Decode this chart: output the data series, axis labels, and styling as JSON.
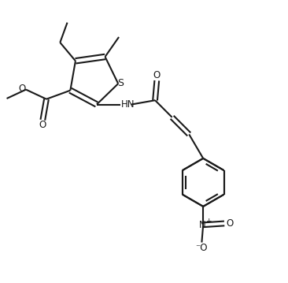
{
  "bg_color": "#ffffff",
  "line_color": "#1a1a1a",
  "line_width": 1.5,
  "fig_width": 3.66,
  "fig_height": 3.59,
  "dpi": 100,
  "font_size": 8.5,
  "font_color": "#1a1a1a",
  "xlim": [
    0,
    10
  ],
  "ylim": [
    0,
    10
  ]
}
